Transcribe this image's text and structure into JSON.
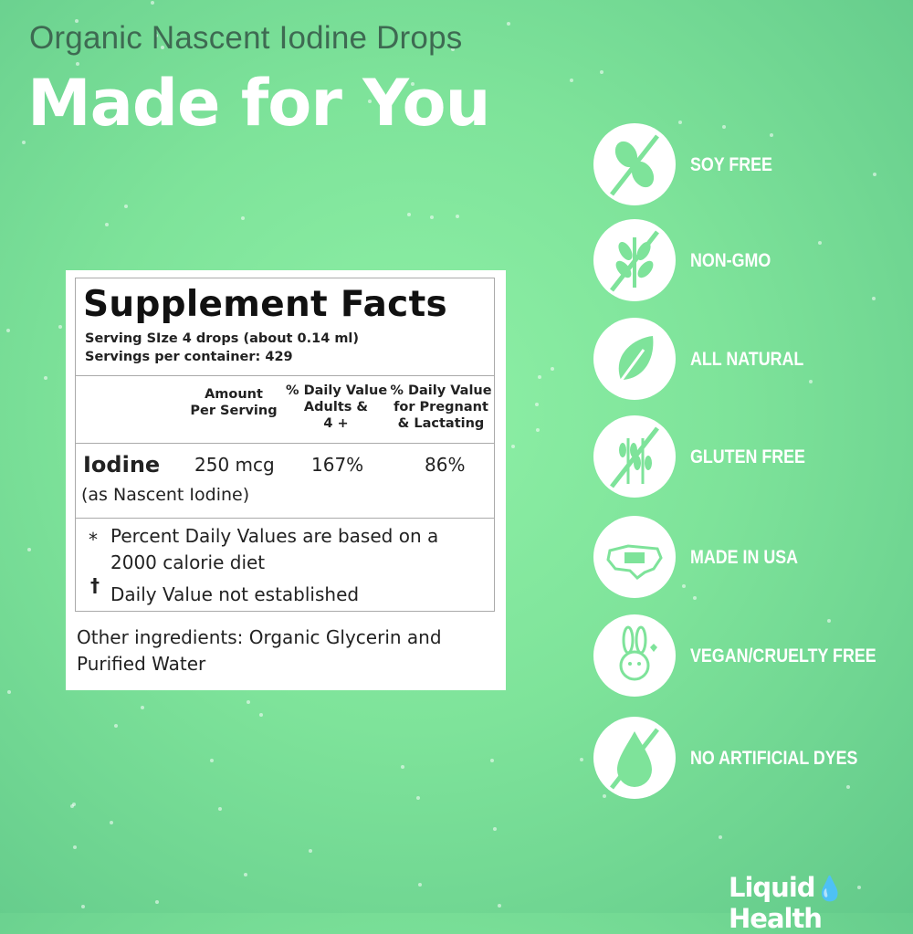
{
  "header": {
    "subtitle": "Organic Nascent Iodine Drops",
    "title": "Made for You"
  },
  "facts": {
    "title": "Supplement Facts",
    "serving_size": "Serving SIze 4 drops (about 0.14 ml)",
    "servings_per_container": "Servings per container: 429",
    "columns": [
      "Amount\nPer Serving",
      "% Daily Value\nAdults &\n4 +",
      "% Daily Value\nfor Pregnant\n& Lactating"
    ],
    "row": {
      "name": "Iodine",
      "sub": "(as Nascent Iodine)",
      "amount": "250 mcg",
      "dv_adults": "167%",
      "dv_pregnant": "86%"
    },
    "notes": [
      {
        "symbol": "*",
        "text": "Percent Daily Values are based on a\n2000 calorie diet"
      },
      {
        "symbol": "†",
        "text": "Daily Value not established"
      }
    ],
    "other_ingredients": "Other ingredients: Organic Glycerin and Purified Water"
  },
  "badges": [
    {
      "label": "SOY FREE",
      "icon": "soy-free-icon"
    },
    {
      "label": "NON-GMO",
      "icon": "non-gmo-icon"
    },
    {
      "label": "ALL NATURAL",
      "icon": "leaf-icon"
    },
    {
      "label": "GLUTEN FREE",
      "icon": "gluten-free-icon"
    },
    {
      "label": "MADE IN USA",
      "icon": "usa-map-icon"
    },
    {
      "label": "VEGAN/CRUELTY FREE",
      "icon": "bunny-icon"
    },
    {
      "label": "NO ARTIFICIAL DYES",
      "icon": "no-dye-drop-icon"
    }
  ],
  "brand": {
    "logo": "LiquidHealth"
  },
  "colors": {
    "background": "#7ee39a",
    "subtitle": "#3e6a52",
    "icon_fill": "#7ee39a"
  }
}
